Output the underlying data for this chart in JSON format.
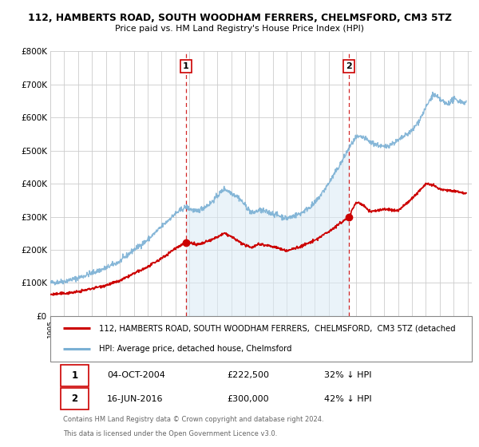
{
  "title": "112, HAMBERTS ROAD, SOUTH WOODHAM FERRERS, CHELMSFORD, CM3 5TZ",
  "subtitle": "Price paid vs. HM Land Registry's House Price Index (HPI)",
  "sale1_price": 222500,
  "sale1_label": "04-OCT-2004",
  "sale1_pct": "32% ↓ HPI",
  "sale2_price": 300000,
  "sale2_label": "16-JUN-2016",
  "sale2_pct": "42% ↓ HPI",
  "hpi_color": "#7ab0d4",
  "hpi_fill_color": "#daeaf5",
  "sold_color": "#cc0000",
  "marker_color": "#cc0000",
  "vline_color": "#cc0000",
  "background_color": "#ffffff",
  "plot_bg_color": "#ffffff",
  "grid_color": "#cccccc",
  "legend_line1": "112, HAMBERTS ROAD, SOUTH WOODHAM FERRERS,  CHELMSFORD,  CM3 5TZ (detached",
  "legend_line2": "HPI: Average price, detached house, Chelmsford",
  "footer1": "Contains HM Land Registry data © Crown copyright and database right 2024.",
  "footer2": "This data is licensed under the Open Government Licence v3.0.",
  "ylim": [
    0,
    800000
  ],
  "xlim_start": 1995.0,
  "xlim_end": 2025.3,
  "sale1_x": 2004.752,
  "sale2_x": 2016.458
}
